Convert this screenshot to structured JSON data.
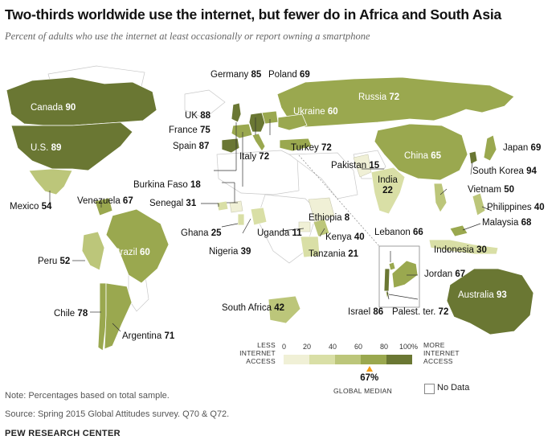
{
  "header": {
    "title": "Two-thirds worldwide use the internet, but fewer do in Africa and South Asia",
    "subtitle": "Percent of adults who use the internet at least occasionally or report owning a smartphone"
  },
  "colors": {
    "bin_0_20": "#f0f0d6",
    "bin_20_40": "#d9dfa6",
    "bin_40_60": "#bcc67a",
    "bin_60_80": "#9aa84f",
    "bin_80_100": "#6a7733",
    "no_data": "#ffffff",
    "median_marker": "#f39c12"
  },
  "countries": [
    {
      "name": "Canada",
      "value": "90"
    },
    {
      "name": "U.S.",
      "value": "89"
    },
    {
      "name": "Mexico",
      "value": "54"
    },
    {
      "name": "Venezuela",
      "value": "67"
    },
    {
      "name": "Peru",
      "value": "52"
    },
    {
      "name": "Brazil",
      "value": "60"
    },
    {
      "name": "Chile",
      "value": "78"
    },
    {
      "name": "Argentina",
      "value": "71"
    },
    {
      "name": "Germany",
      "value": "85"
    },
    {
      "name": "Poland",
      "value": "69"
    },
    {
      "name": "UK",
      "value": "88"
    },
    {
      "name": "France",
      "value": "75"
    },
    {
      "name": "Spain",
      "value": "87"
    },
    {
      "name": "Italy",
      "value": "72"
    },
    {
      "name": "Ukraine",
      "value": "60"
    },
    {
      "name": "Russia",
      "value": "72"
    },
    {
      "name": "Turkey",
      "value": "72"
    },
    {
      "name": "China",
      "value": "65"
    },
    {
      "name": "Japan",
      "value": "69"
    },
    {
      "name": "South Korea",
      "value": "94"
    },
    {
      "name": "Pakistan",
      "value": "15"
    },
    {
      "name": "India",
      "value": "22"
    },
    {
      "name": "Vietnam",
      "value": "50"
    },
    {
      "name": "Philippines",
      "value": "40"
    },
    {
      "name": "Malaysia",
      "value": "68"
    },
    {
      "name": "Indonesia",
      "value": "30"
    },
    {
      "name": "Australia",
      "value": "93"
    },
    {
      "name": "Burkina Faso",
      "value": "18"
    },
    {
      "name": "Senegal",
      "value": "31"
    },
    {
      "name": "Ghana",
      "value": "25"
    },
    {
      "name": "Nigeria",
      "value": "39"
    },
    {
      "name": "Uganda",
      "value": "11"
    },
    {
      "name": "Ethiopia",
      "value": "8"
    },
    {
      "name": "Kenya",
      "value": "40"
    },
    {
      "name": "Tanzania",
      "value": "21"
    },
    {
      "name": "South Africa",
      "value": "42"
    },
    {
      "name": "Lebanon",
      "value": "66"
    },
    {
      "name": "Jordan",
      "value": "67"
    },
    {
      "name": "Israel",
      "value": "86"
    },
    {
      "name": "Palest. ter.",
      "value": "72"
    }
  ],
  "legend": {
    "less_label": "LESS INTERNET ACCESS",
    "more_label": "MORE INTERNET ACCESS",
    "ticks": [
      "0",
      "20",
      "40",
      "60",
      "80",
      "100%"
    ],
    "median_value": "67%",
    "median_label": "GLOBAL MEDIAN",
    "median_fraction": 0.67,
    "no_data_label": "No Data"
  },
  "footer": {
    "note": "Note: Percentages based on total sample.",
    "source": "Source: Spring 2015 Global Attitudes survey. Q70 & Q72.",
    "brand": "PEW RESEARCH CENTER"
  }
}
